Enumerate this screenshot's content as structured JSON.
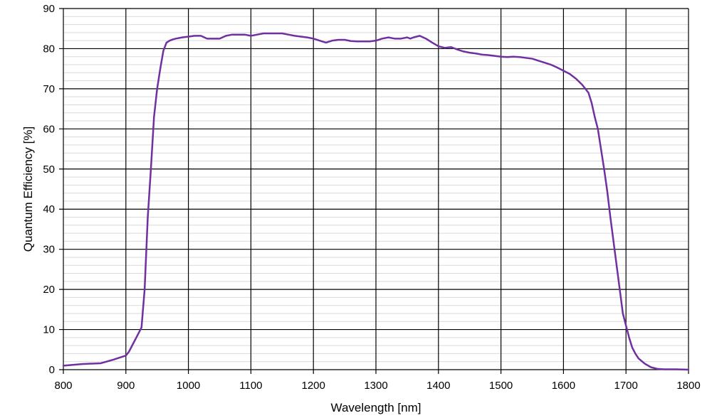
{
  "chart_data": {
    "type": "line",
    "title": "",
    "xlabel": "Wavelength [nm]",
    "ylabel": "Quantum Efficiency [%]",
    "xlim": [
      800,
      1800
    ],
    "ylim": [
      0,
      90
    ],
    "x_ticks": [
      800,
      900,
      1000,
      1100,
      1200,
      1300,
      1400,
      1500,
      1600,
      1700,
      1800
    ],
    "y_ticks": [
      0,
      10,
      20,
      30,
      40,
      50,
      60,
      70,
      80,
      90
    ],
    "grid": {
      "major": true,
      "minor_horizontal": true
    },
    "legend": "none",
    "colors": {
      "line": "#7030a0",
      "major_grid": "#000000",
      "minor_grid": "#d9d9d9"
    },
    "series": [
      {
        "x": [
          800,
          830,
          860,
          880,
          900,
          905,
          910,
          915,
          920,
          925,
          930,
          935,
          940,
          945,
          950,
          955,
          960,
          965,
          970,
          975,
          980,
          990,
          1000,
          1010,
          1020,
          1030,
          1040,
          1050,
          1060,
          1070,
          1080,
          1090,
          1100,
          1110,
          1120,
          1130,
          1140,
          1150,
          1160,
          1170,
          1180,
          1190,
          1200,
          1210,
          1220,
          1230,
          1240,
          1250,
          1260,
          1270,
          1280,
          1290,
          1300,
          1310,
          1320,
          1330,
          1340,
          1350,
          1355,
          1360,
          1370,
          1380,
          1390,
          1400,
          1410,
          1420,
          1430,
          1440,
          1450,
          1460,
          1470,
          1480,
          1490,
          1500,
          1510,
          1520,
          1530,
          1540,
          1550,
          1560,
          1570,
          1580,
          1590,
          1600,
          1610,
          1620,
          1630,
          1640,
          1645,
          1650,
          1655,
          1660,
          1665,
          1670,
          1675,
          1680,
          1685,
          1690,
          1695,
          1700,
          1705,
          1710,
          1715,
          1720,
          1730,
          1740,
          1750,
          1760,
          1770,
          1780,
          1800
        ],
        "y": [
          1.0,
          1.4,
          1.6,
          2.5,
          3.5,
          4.5,
          6.0,
          7.5,
          9.0,
          10.5,
          20.0,
          38.0,
          50.0,
          63.0,
          70.0,
          75.0,
          79.5,
          81.5,
          82.0,
          82.3,
          82.5,
          82.8,
          83.0,
          83.2,
          83.2,
          82.5,
          82.5,
          82.5,
          83.2,
          83.5,
          83.5,
          83.5,
          83.2,
          83.5,
          83.8,
          83.8,
          83.8,
          83.8,
          83.5,
          83.2,
          83.0,
          82.8,
          82.5,
          82.0,
          81.5,
          82.0,
          82.2,
          82.2,
          81.9,
          81.8,
          81.8,
          81.8,
          82.0,
          82.5,
          82.8,
          82.5,
          82.5,
          82.8,
          82.5,
          82.8,
          83.2,
          82.5,
          81.5,
          80.6,
          80.2,
          80.4,
          79.8,
          79.3,
          79.0,
          78.8,
          78.5,
          78.4,
          78.2,
          78.0,
          77.9,
          78.0,
          77.9,
          77.7,
          77.5,
          77.0,
          76.5,
          76.0,
          75.3,
          74.5,
          73.7,
          72.5,
          71.0,
          69.0,
          66.5,
          63.0,
          60.0,
          55.0,
          50.0,
          44.5,
          38.0,
          32.0,
          26.0,
          20.0,
          14.0,
          11.0,
          8.0,
          5.5,
          4.0,
          2.8,
          1.5,
          0.6,
          0.2,
          0.1,
          0.1,
          0.1,
          0.0
        ]
      }
    ]
  }
}
